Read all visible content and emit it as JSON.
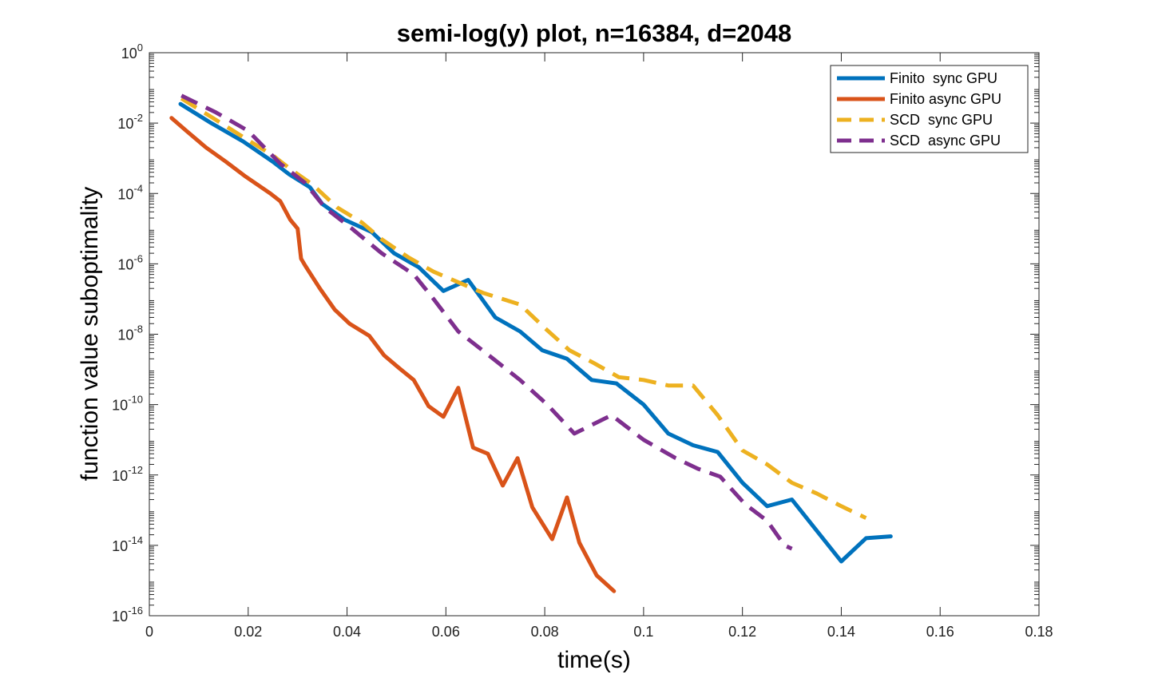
{
  "chart_data": {
    "type": "line",
    "title": "semi-log(y) plot, n=16384, d=2048",
    "xlabel": "time(s)",
    "ylabel": "function value suboptimality",
    "xlim": [
      0,
      0.18
    ],
    "ylim": [
      1e-16,
      1
    ],
    "yscale": "log",
    "grid": false,
    "legend_position": "top-right",
    "x_ticks": [
      "0",
      "0.02",
      "0.04",
      "0.06",
      "0.08",
      "0.1",
      "0.12",
      "0.14",
      "0.16",
      "0.18"
    ],
    "y_ticks": [
      {
        "base": "10",
        "exp": "0"
      },
      {
        "base": "10",
        "exp": "-2"
      },
      {
        "base": "10",
        "exp": "-4"
      },
      {
        "base": "10",
        "exp": "-6"
      },
      {
        "base": "10",
        "exp": "-8"
      },
      {
        "base": "10",
        "exp": "-10"
      },
      {
        "base": "10",
        "exp": "-12"
      },
      {
        "base": "10",
        "exp": "-14"
      },
      {
        "base": "10",
        "exp": "-16"
      }
    ],
    "series": [
      {
        "name": "Finito  sync GPU",
        "color": "#0072BD",
        "style": "solid",
        "x": [
          0.0063,
          0.0125,
          0.019,
          0.025,
          0.0283,
          0.0325,
          0.035,
          0.0395,
          0.045,
          0.0495,
          0.0545,
          0.0595,
          0.0645,
          0.07,
          0.075,
          0.0795,
          0.0845,
          0.0895,
          0.0945,
          0.1,
          0.105,
          0.11,
          0.115,
          0.12,
          0.125,
          0.13,
          0.14,
          0.145,
          0.15
        ],
        "y": [
          0.035,
          0.01,
          0.003,
          0.0008,
          0.00035,
          0.00015,
          5e-05,
          1.8e-05,
          8e-06,
          2e-06,
          8e-07,
          1.7e-07,
          3.5e-07,
          3e-08,
          1.2e-08,
          3.5e-09,
          2e-09,
          5e-10,
          4e-10,
          1e-10,
          1.5e-11,
          7e-12,
          4.5e-12,
          6e-13,
          1.3e-13,
          2e-13,
          3.5e-15,
          1.6e-14,
          1.8e-14
        ]
      },
      {
        "name": "Finito async GPU",
        "color": "#D95319",
        "style": "solid",
        "x": [
          0.0045,
          0.0075,
          0.0115,
          0.0155,
          0.0195,
          0.0245,
          0.0265,
          0.0285,
          0.03,
          0.0307,
          0.0315,
          0.0345,
          0.0375,
          0.0405,
          0.0445,
          0.0475,
          0.0505,
          0.0535,
          0.0565,
          0.0595,
          0.0625,
          0.0655,
          0.0685,
          0.0715,
          0.0745,
          0.0775,
          0.0815,
          0.0845,
          0.087,
          0.0905,
          0.094
        ],
        "y": [
          0.014,
          0.006,
          0.002,
          0.0008,
          0.0003,
          0.0001,
          6e-05,
          1.8e-05,
          1e-05,
          1.4e-06,
          9e-07,
          2e-07,
          5e-08,
          2e-08,
          9e-09,
          2.5e-09,
          1.1e-09,
          5e-10,
          9e-11,
          4.5e-11,
          3e-10,
          6e-12,
          4e-12,
          5e-13,
          3e-12,
          1.2e-13,
          1.5e-14,
          2.3e-13,
          1.2e-14,
          1.4e-15,
          5e-16
        ]
      },
      {
        "name": "SCD  sync GPU",
        "color": "#EDB120",
        "style": "dashed",
        "x": [
          0.0065,
          0.0125,
          0.019,
          0.025,
          0.0285,
          0.033,
          0.038,
          0.043,
          0.047,
          0.0525,
          0.0575,
          0.0625,
          0.0675,
          0.075,
          0.08,
          0.085,
          0.09,
          0.095,
          0.1,
          0.105,
          0.11,
          0.115,
          0.12,
          0.125,
          0.13,
          0.135,
          0.14,
          0.145
        ],
        "y": [
          0.05,
          0.015,
          0.004,
          0.0012,
          0.0005,
          0.00018,
          4e-05,
          1.5e-05,
          5e-06,
          1.5e-06,
          6e-07,
          3e-07,
          1.5e-07,
          7e-08,
          1.5e-08,
          3.5e-09,
          1.5e-09,
          6e-10,
          5e-10,
          3.5e-10,
          3.5e-10,
          5e-11,
          5e-12,
          2e-12,
          6e-13,
          3e-13,
          1.3e-13,
          6e-14
        ]
      },
      {
        "name": "SCD  async GPU",
        "color": "#7E2F8E",
        "style": "dashed",
        "x": [
          0.0065,
          0.0135,
          0.02,
          0.0265,
          0.0315,
          0.0355,
          0.041,
          0.047,
          0.0535,
          0.0575,
          0.0625,
          0.068,
          0.075,
          0.0805,
          0.086,
          0.0935,
          0.1,
          0.1065,
          0.111,
          0.1155,
          0.1205,
          0.125,
          0.1285,
          0.13
        ],
        "y": [
          0.06,
          0.02,
          0.006,
          0.0007,
          0.0002,
          4e-05,
          1e-05,
          2e-06,
          5e-07,
          1e-07,
          1.2e-08,
          3e-09,
          5e-10,
          1e-10,
          1.5e-11,
          5e-11,
          1e-11,
          3e-12,
          1.5e-12,
          9e-13,
          1.5e-13,
          5e-14,
          1e-14,
          8e-15
        ]
      }
    ]
  }
}
